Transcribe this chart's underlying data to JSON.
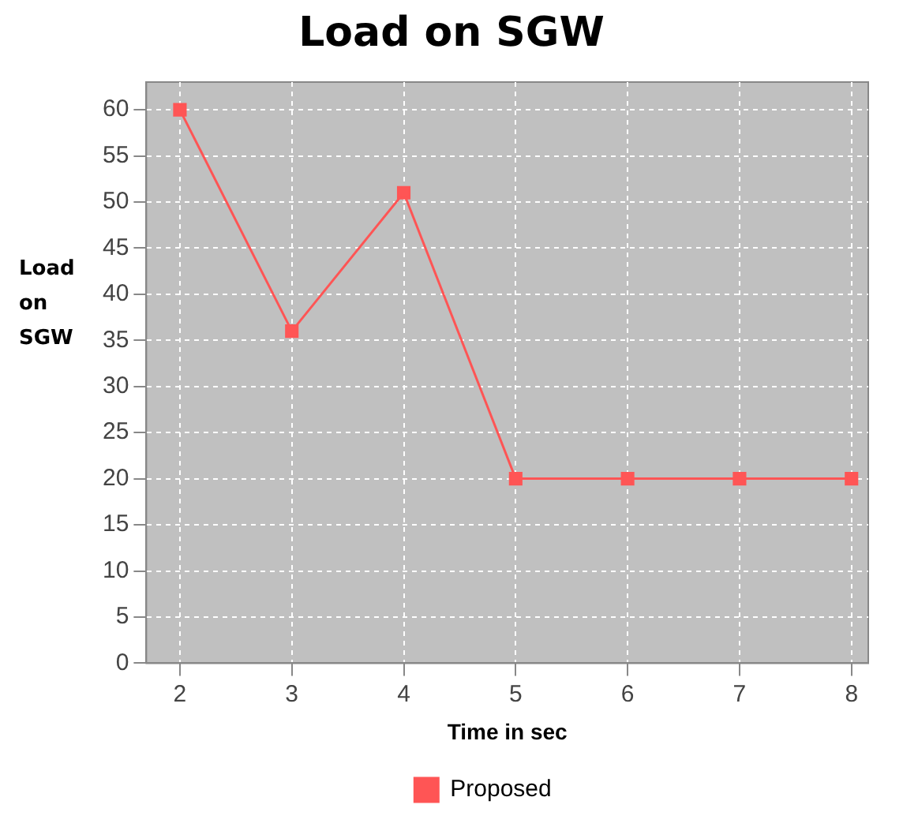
{
  "chart_data": {
    "type": "line",
    "title": "Load on SGW",
    "xlabel": "Time in sec",
    "ylabel": "Load on SGW",
    "x": [
      2,
      3,
      4,
      5,
      6,
      7,
      8
    ],
    "series": [
      {
        "name": "Proposed",
        "color": "#ff5555",
        "values": [
          60,
          36,
          51,
          20,
          20,
          20,
          20
        ]
      }
    ],
    "xlim": [
      1.7,
      8.15
    ],
    "xticks": [
      2,
      3,
      4,
      5,
      6,
      7,
      8
    ],
    "ylim": [
      0,
      63
    ],
    "yticks": [
      0,
      5,
      10,
      15,
      20,
      25,
      30,
      35,
      40,
      45,
      50,
      55,
      60
    ],
    "grid": true,
    "legend": "bottom",
    "marker": "square",
    "line_style": "solid"
  }
}
